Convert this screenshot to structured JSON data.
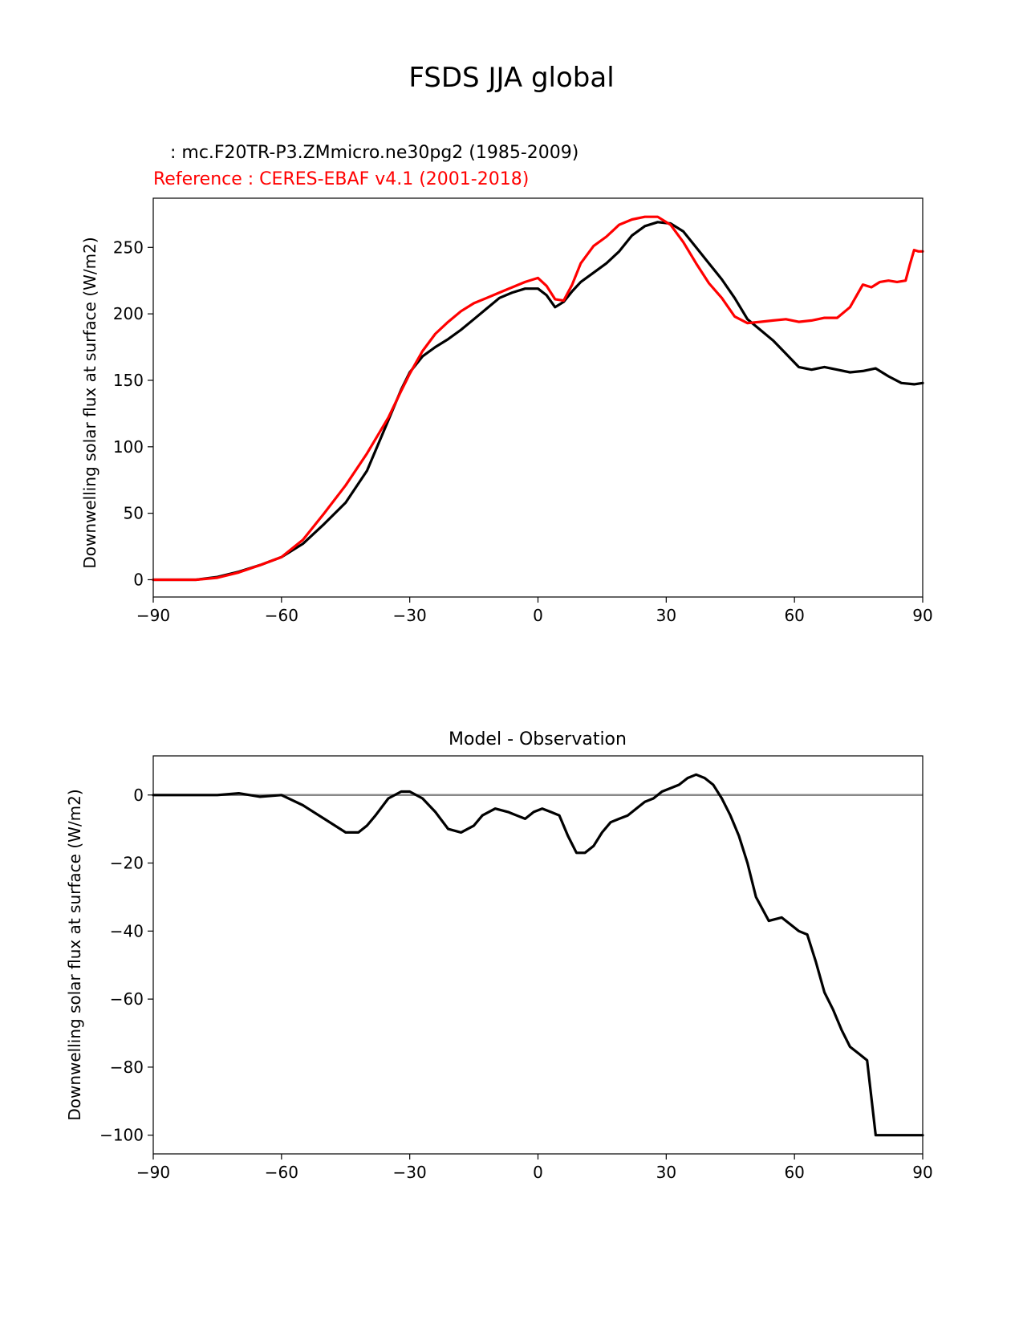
{
  "figure": {
    "title": "FSDS JJA global",
    "test_label": "   : mc.F20TR-P3.ZMmicro.ne30pg2 (1985-2009)",
    "ref_label": "Reference : CERES-EBAF v4.1 (2001-2018)"
  },
  "colors": {
    "test": "#000000",
    "reference": "#ff0000",
    "zero_line": "#888888"
  },
  "chart_data": [
    {
      "type": "line",
      "title": "",
      "xlabel": "",
      "ylabel": "Downwelling solar flux at surface (W/m2)",
      "xlim": [
        -90,
        90
      ],
      "ylim": [
        -13,
        287
      ],
      "xticks": [
        -90,
        -60,
        -30,
        0,
        30,
        60,
        90
      ],
      "yticks": [
        0,
        50,
        100,
        150,
        200,
        250
      ],
      "xtick_labels": [
        "−90",
        "−60",
        "−30",
        "0",
        "30",
        "60",
        "90"
      ],
      "ytick_labels": [
        "0",
        "50",
        "100",
        "150",
        "200",
        "250"
      ],
      "series": [
        {
          "name": "mc.F20TR-P3.ZMmicro.ne30pg2 (1985-2009)",
          "x": [
            -90,
            -80,
            -75,
            -70,
            -65,
            -60,
            -55,
            -50,
            -45,
            -40,
            -35,
            -32,
            -30,
            -27,
            -24,
            -21,
            -18,
            -15,
            -12,
            -9,
            -6,
            -3,
            0,
            2,
            4,
            6,
            8,
            10,
            13,
            16,
            19,
            22,
            25,
            28,
            31,
            34,
            37,
            40,
            43,
            46,
            49,
            52,
            55,
            58,
            61,
            64,
            67,
            70,
            73,
            76,
            79,
            82,
            85,
            88,
            90
          ],
          "y": [
            0,
            0,
            2,
            6,
            11,
            17,
            27,
            42,
            58,
            82,
            120,
            143,
            156,
            168,
            175,
            181,
            188,
            196,
            204,
            212,
            216,
            219,
            219,
            214,
            205,
            209,
            217,
            224,
            231,
            238,
            247,
            259,
            266,
            269,
            268,
            262,
            250,
            238,
            226,
            212,
            196,
            188,
            180,
            170,
            160,
            158,
            160,
            158,
            156,
            157,
            159,
            153,
            148,
            147,
            148
          ]
        },
        {
          "name": "CERES-EBAF v4.1 (2001-2018)",
          "x": [
            -90,
            -80,
            -75,
            -70,
            -65,
            -60,
            -55,
            -50,
            -45,
            -40,
            -35,
            -32,
            -30,
            -27,
            -24,
            -21,
            -18,
            -15,
            -12,
            -9,
            -6,
            -3,
            0,
            2,
            4,
            6,
            8,
            10,
            13,
            16,
            19,
            22,
            25,
            28,
            31,
            34,
            37,
            40,
            43,
            46,
            49,
            52,
            55,
            58,
            61,
            64,
            67,
            70,
            73,
            76,
            78,
            80,
            82,
            84,
            86,
            87,
            88,
            89,
            90
          ],
          "y": [
            0,
            0,
            1.5,
            5.5,
            11,
            17,
            30,
            50,
            71,
            95,
            122,
            142,
            155,
            172,
            185,
            194,
            202,
            208,
            212,
            216,
            220,
            224,
            227,
            221,
            211,
            210,
            222,
            238,
            251,
            258,
            267,
            271,
            273,
            273,
            267,
            254,
            238,
            223,
            212,
            198,
            193,
            194,
            195,
            196,
            194,
            195,
            197,
            197,
            205,
            222,
            220,
            224,
            225,
            224,
            225,
            237,
            248,
            247,
            247
          ]
        }
      ]
    },
    {
      "type": "line",
      "title": "Model - Observation",
      "xlabel": "",
      "ylabel": "Downwelling solar flux at surface (W/m2)",
      "xlim": [
        -90,
        90
      ],
      "ylim": [
        -105.5,
        11.5
      ],
      "xticks": [
        -90,
        -60,
        -30,
        0,
        30,
        60,
        90
      ],
      "yticks": [
        0,
        -20,
        -40,
        -60,
        -80,
        -100
      ],
      "xtick_labels": [
        "−90",
        "−60",
        "−30",
        "0",
        "30",
        "60",
        "90"
      ],
      "ytick_labels": [
        "0",
        "−20",
        "−40",
        "−60",
        "−80",
        "−100"
      ],
      "zero_line": true,
      "series": [
        {
          "name": "",
          "x": [
            -90,
            -80,
            -75,
            -70,
            -65,
            -60,
            -55,
            -50,
            -45,
            -42,
            -40,
            -38,
            -35,
            -32,
            -30,
            -27,
            -24,
            -21,
            -18,
            -15,
            -13,
            -10,
            -7,
            -5,
            -3,
            -1,
            1,
            3,
            5,
            7,
            9,
            11,
            13,
            15,
            17,
            19,
            21,
            23,
            25,
            27,
            29,
            31,
            33,
            35,
            37,
            39,
            41,
            43,
            45,
            47,
            49,
            51,
            54,
            57,
            59,
            61,
            63,
            65,
            67,
            69,
            71,
            73,
            75,
            77,
            79,
            81,
            83,
            85,
            87,
            88,
            89,
            90
          ],
          "y": [
            0,
            0,
            0,
            0.5,
            -0.5,
            0,
            -3,
            -7,
            -11,
            -11,
            -9,
            -6,
            -1,
            1,
            1,
            -1,
            -5,
            -10,
            -11,
            -9,
            -6,
            -4,
            -5,
            -6,
            -7,
            -5,
            -4,
            -5,
            -6,
            -12,
            -17,
            -17,
            -15,
            -11,
            -8,
            -7,
            -6,
            -4,
            -2,
            -1,
            1,
            2,
            3,
            5,
            6,
            5,
            3,
            -1,
            -6,
            -12,
            -20,
            -30,
            -37,
            -36,
            -38,
            -40,
            -41,
            -49,
            -58,
            -63,
            -69,
            -74,
            -76,
            -78,
            -100,
            -100,
            -100,
            -100,
            -100,
            -100,
            -100,
            -100
          ]
        }
      ]
    }
  ]
}
